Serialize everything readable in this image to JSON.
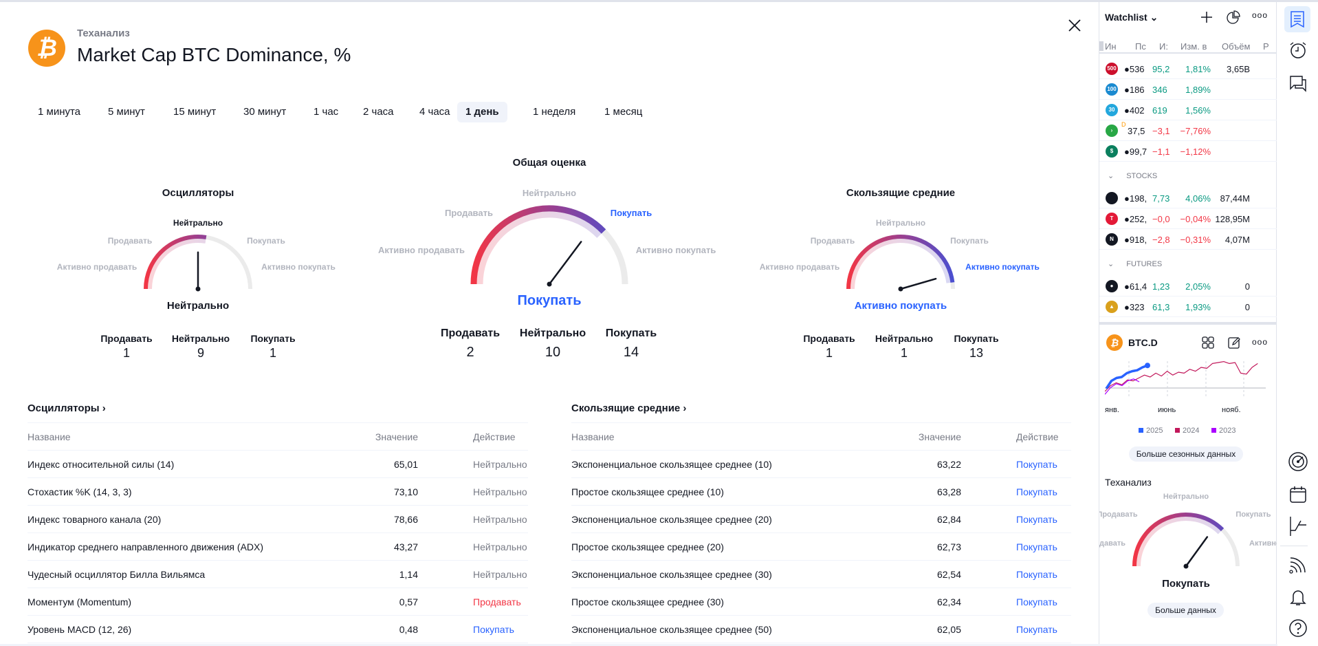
{
  "header": {
    "subtitle": "Теханализ",
    "title": "Market Cap BTC Dominance, %",
    "logo_icon": "bitcoin-icon",
    "logo_color": "#f7931a"
  },
  "tabs": [
    {
      "label": "1 минута"
    },
    {
      "label": "5 минут"
    },
    {
      "label": "15 минут"
    },
    {
      "label": "30 минут"
    },
    {
      "label": "1 час"
    },
    {
      "label": "2 часа"
    },
    {
      "label": "4 часа"
    },
    {
      "label": "1 день",
      "active": true
    },
    {
      "label": "1 неделя"
    },
    {
      "label": "1 месяц"
    }
  ],
  "scale_labels": {
    "strong_sell": "Активно продавать",
    "sell": "Продавать",
    "neutral": "Нейтрально",
    "buy": "Покупать",
    "strong_buy": "Активно покупать"
  },
  "gauges": [
    {
      "title": "Осцилляторы",
      "result": "Нейтрально",
      "level": 0.0,
      "highlight": "neutral",
      "counts": [
        {
          "label": "Продавать",
          "value": "1"
        },
        {
          "label": "Нейтрально",
          "value": "9"
        },
        {
          "label": "Покупать",
          "value": "1"
        }
      ]
    },
    {
      "title": "Общая оценка",
      "result": "Покупать",
      "level": 0.41,
      "highlight": "buy",
      "counts": [
        {
          "label": "Продавать",
          "value": "2"
        },
        {
          "label": "Нейтрально",
          "value": "10"
        },
        {
          "label": "Покупать",
          "value": "14"
        }
      ]
    },
    {
      "title": "Скользящие средние",
      "result": "Активно покупать",
      "level": 0.82,
      "highlight": "strong_buy",
      "counts": [
        {
          "label": "Продавать",
          "value": "1"
        },
        {
          "label": "Нейтрально",
          "value": "1"
        },
        {
          "label": "Покупать",
          "value": "13"
        }
      ]
    }
  ],
  "oscillators": {
    "title": "Осцилляторы ›",
    "columns": [
      "Название",
      "Значение",
      "Действие"
    ],
    "rows": [
      {
        "name": "Индекс относительной силы (14)",
        "value": "65,01",
        "action": "Нейтрально",
        "type": "neu"
      },
      {
        "name": "Стохастик %K (14, 3, 3)",
        "value": "73,10",
        "action": "Нейтрально",
        "type": "neu"
      },
      {
        "name": "Индекс товарного канала (20)",
        "value": "78,66",
        "action": "Нейтрально",
        "type": "neu"
      },
      {
        "name": "Индикатор среднего направленного движения (ADX)",
        "value": "43,27",
        "action": "Нейтрально",
        "type": "neu"
      },
      {
        "name": "Чудесный осциллятор Билла Вильямса",
        "value": "1,14",
        "action": "Нейтрально",
        "type": "neu"
      },
      {
        "name": "Моментум (Momentum)",
        "value": "0,57",
        "action": "Продавать",
        "type": "sell"
      },
      {
        "name": "Уровень MACD (12, 26)",
        "value": "0,48",
        "action": "Покупать",
        "type": "buy"
      }
    ]
  },
  "moving_averages": {
    "title": "Скользящие средние ›",
    "columns": [
      "Название",
      "Значение",
      "Действие"
    ],
    "rows": [
      {
        "name": "Экспоненциальное скользящее среднее (10)",
        "value": "63,22",
        "action": "Покупать",
        "type": "buy"
      },
      {
        "name": "Простое скользящее среднее (10)",
        "value": "63,28",
        "action": "Покупать",
        "type": "buy"
      },
      {
        "name": "Экспоненциальное скользящее среднее (20)",
        "value": "62,84",
        "action": "Покупать",
        "type": "buy"
      },
      {
        "name": "Простое скользящее среднее (20)",
        "value": "62,73",
        "action": "Покупать",
        "type": "buy"
      },
      {
        "name": "Экспоненциальное скользящее среднее (30)",
        "value": "62,54",
        "action": "Покупать",
        "type": "buy"
      },
      {
        "name": "Простое скользящее среднее (30)",
        "value": "62,34",
        "action": "Покупать",
        "type": "buy"
      },
      {
        "name": "Экспоненциальное скользящее среднее (50)",
        "value": "62,05",
        "action": "Покупать",
        "type": "buy"
      }
    ]
  },
  "watchlist": {
    "title": "Watchlist ⌄",
    "columns": [
      "Ин",
      "Пс",
      "И:",
      "Изм. в",
      "Объём",
      "Р"
    ],
    "groups": [
      {
        "name": "",
        "rows": [
          {
            "badge": "500",
            "color": "#cc0f2c",
            "price": "●536",
            "chg": "95,2",
            "pct": "1,81%",
            "vol": "3,65B",
            "dir": "up"
          },
          {
            "badge": "100",
            "color": "#1a8ad0",
            "price": "●186",
            "chg": "346",
            "pct": "1,89%",
            "vol": "",
            "dir": "up"
          },
          {
            "badge": "30",
            "color": "#23a7dd",
            "price": "●402",
            "chg": "619",
            "pct": "1,56%",
            "vol": "",
            "dir": "up"
          },
          {
            "badge": "›",
            "color": "#28a745",
            "price": "37,5",
            "flag": "D",
            "chg": "−3,1",
            "pct": "−7,76%",
            "vol": "",
            "dir": "dn"
          },
          {
            "badge": "$",
            "color": "#0b7f5e",
            "price": "●99,7",
            "chg": "−1,1",
            "pct": "−1,12%",
            "vol": "",
            "dir": "dn"
          }
        ]
      },
      {
        "name": "STOCKS",
        "rows": [
          {
            "badge": "",
            "color": "#131722",
            "price": "●198,",
            "chg": "7,73",
            "pct": "4,06%",
            "vol": "87,44M",
            "dir": "up"
          },
          {
            "badge": "T",
            "color": "#e31937",
            "price": "●252,",
            "chg": "−0,0",
            "pct": "−0,04%",
            "vol": "128,95M",
            "dir": "dn"
          },
          {
            "badge": "N",
            "color": "#131722",
            "price": "●918,",
            "chg": "−2,8",
            "pct": "−0,31%",
            "vol": "4,07M",
            "dir": "dn"
          }
        ]
      },
      {
        "name": "FUTURES",
        "rows": [
          {
            "badge": "●",
            "color": "#131722",
            "price": "●61,4",
            "chg": "1,23",
            "pct": "2,05%",
            "vol": "0",
            "dir": "up"
          },
          {
            "badge": "▲",
            "color": "#d9a01c",
            "price": "●323",
            "chg": "61,3",
            "pct": "1,93%",
            "vol": "0",
            "dir": "up"
          }
        ]
      }
    ]
  },
  "symbol_panel": {
    "symbol": "BTC.D",
    "months": [
      "янв.",
      "июнь",
      "нояб."
    ],
    "legend": [
      {
        "name": "2025",
        "color": "#2962ff"
      },
      {
        "name": "2024",
        "color": "#c2185b"
      },
      {
        "name": "2023",
        "color": "#aa00ff"
      }
    ],
    "series": {
      "2025": [
        44,
        52,
        55,
        56,
        60,
        62,
        63,
        66,
        68
      ],
      "2024": [
        41,
        47,
        50,
        48,
        53,
        52,
        55,
        58,
        56,
        60,
        57,
        62,
        58,
        61,
        60,
        64,
        62,
        66,
        65,
        70,
        71,
        72,
        70,
        71,
        60,
        59,
        66,
        70
      ],
      "2023": [
        38,
        45,
        49,
        47,
        52,
        54,
        51
      ]
    },
    "seasonal_button": "Больше сезонных данных",
    "ta_title": "Теханализ",
    "ta_result": "Покупать",
    "ta_level": 0.4,
    "more_button": "Больше данных"
  }
}
